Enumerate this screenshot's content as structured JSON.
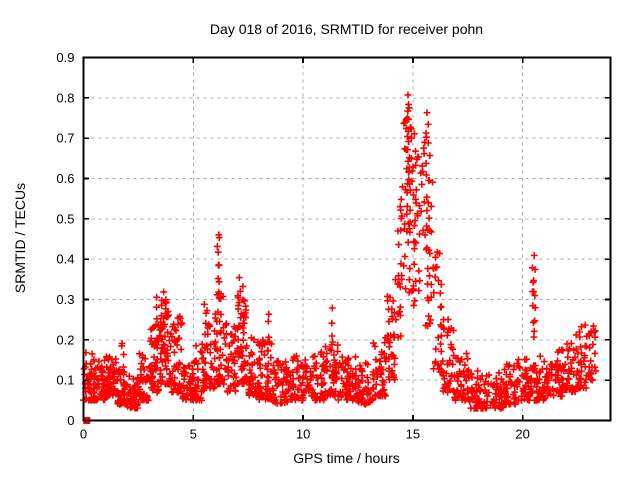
{
  "chart_data": {
    "type": "scatter",
    "title": "Day 018 of 2016, SRMTID for receiver pohn",
    "xlabel": "GPS time / hours",
    "ylabel": "SRMTID / TECUs",
    "xlim": [
      0,
      24
    ],
    "ylim": [
      0,
      0.9
    ],
    "xticks": [
      {
        "value": 0,
        "label": "0"
      },
      {
        "value": 5,
        "label": "5"
      },
      {
        "value": 10,
        "label": "10"
      },
      {
        "value": 15,
        "label": "15"
      },
      {
        "value": 20,
        "label": "20"
      }
    ],
    "yticks": [
      {
        "value": 0.0,
        "label": "0"
      },
      {
        "value": 0.1,
        "label": "0.1"
      },
      {
        "value": 0.2,
        "label": "0.2"
      },
      {
        "value": 0.3,
        "label": "0.3"
      },
      {
        "value": 0.4,
        "label": "0.4"
      },
      {
        "value": 0.5,
        "label": "0.5"
      },
      {
        "value": 0.6,
        "label": "0.6"
      },
      {
        "value": 0.7,
        "label": "0.7"
      },
      {
        "value": 0.8,
        "label": "0.8"
      },
      {
        "value": 0.9,
        "label": "0.9"
      }
    ],
    "grid": true,
    "legend": "none",
    "marker": "plus",
    "marker_color": "#ff0000",
    "grid_color": "#a8a8a8",
    "frame_color": "#000000",
    "text_color": "#000000",
    "background_color": "#ffffff",
    "series_name": "SRMTID",
    "max_point": {
      "t": 14.8,
      "value": 0.81
    },
    "zero_marker": {
      "t": 0.15,
      "value": 0.0,
      "style": "filled-square"
    },
    "envelope_bins": [
      [
        0.0,
        0.5,
        0.05,
        0.17,
        45
      ],
      [
        0.5,
        1.0,
        0.05,
        0.15,
        45
      ],
      [
        1.0,
        1.5,
        0.06,
        0.16,
        45
      ],
      [
        1.5,
        2.0,
        0.04,
        0.13,
        42
      ],
      [
        2.0,
        2.5,
        0.03,
        0.11,
        42
      ],
      [
        2.5,
        3.0,
        0.05,
        0.17,
        42
      ],
      [
        3.0,
        3.5,
        0.07,
        0.24,
        45
      ],
      [
        3.5,
        4.0,
        0.09,
        0.3,
        48
      ],
      [
        4.0,
        4.5,
        0.07,
        0.26,
        42
      ],
      [
        4.5,
        5.0,
        0.05,
        0.16,
        40
      ],
      [
        5.0,
        5.5,
        0.05,
        0.19,
        40
      ],
      [
        5.5,
        6.0,
        0.08,
        0.3,
        45
      ],
      [
        6.0,
        6.5,
        0.09,
        0.33,
        40
      ],
      [
        6.5,
        7.0,
        0.07,
        0.24,
        40
      ],
      [
        7.0,
        7.5,
        0.09,
        0.31,
        42
      ],
      [
        7.5,
        8.0,
        0.06,
        0.22,
        40
      ],
      [
        8.0,
        8.6,
        0.05,
        0.2,
        48
      ],
      [
        8.6,
        9.4,
        0.04,
        0.15,
        55
      ],
      [
        9.4,
        10.2,
        0.05,
        0.16,
        55
      ],
      [
        10.2,
        11.0,
        0.05,
        0.17,
        55
      ],
      [
        11.0,
        11.6,
        0.06,
        0.2,
        42
      ],
      [
        11.6,
        12.4,
        0.05,
        0.16,
        55
      ],
      [
        12.4,
        13.2,
        0.04,
        0.15,
        55
      ],
      [
        13.2,
        13.8,
        0.06,
        0.21,
        40
      ],
      [
        13.8,
        14.2,
        0.1,
        0.32,
        30
      ],
      [
        14.2,
        14.5,
        0.18,
        0.55,
        22
      ],
      [
        14.5,
        15.0,
        0.3,
        0.78,
        30
      ],
      [
        15.0,
        15.4,
        0.25,
        0.66,
        24
      ],
      [
        15.4,
        15.9,
        0.22,
        0.72,
        26
      ],
      [
        15.9,
        16.3,
        0.12,
        0.42,
        28
      ],
      [
        16.3,
        16.9,
        0.07,
        0.27,
        40
      ],
      [
        16.9,
        17.5,
        0.05,
        0.17,
        45
      ],
      [
        17.5,
        18.3,
        0.03,
        0.13,
        55
      ],
      [
        18.3,
        19.1,
        0.03,
        0.12,
        55
      ],
      [
        19.1,
        19.7,
        0.04,
        0.14,
        45
      ],
      [
        19.7,
        20.4,
        0.05,
        0.16,
        48
      ],
      [
        20.4,
        21.1,
        0.05,
        0.16,
        45
      ],
      [
        21.1,
        21.8,
        0.06,
        0.18,
        45
      ],
      [
        21.8,
        22.4,
        0.07,
        0.2,
        42
      ],
      [
        22.4,
        23.0,
        0.08,
        0.24,
        42
      ],
      [
        23.0,
        23.35,
        0.1,
        0.26,
        22
      ]
    ],
    "spike_columns": [
      [
        1.78,
        0.12,
        0.2,
        5
      ],
      [
        3.35,
        0.15,
        0.3,
        8
      ],
      [
        3.6,
        0.18,
        0.315,
        8
      ],
      [
        3.75,
        0.12,
        0.3,
        7
      ],
      [
        6.15,
        0.32,
        0.465,
        9
      ],
      [
        6.22,
        0.1,
        0.3,
        8
      ],
      [
        7.1,
        0.15,
        0.35,
        9
      ],
      [
        7.25,
        0.12,
        0.33,
        7
      ],
      [
        8.4,
        0.1,
        0.27,
        6
      ],
      [
        11.35,
        0.1,
        0.27,
        7
      ],
      [
        13.9,
        0.12,
        0.3,
        7
      ],
      [
        14.75,
        0.45,
        0.81,
        14
      ],
      [
        14.85,
        0.5,
        0.78,
        10
      ],
      [
        15.1,
        0.35,
        0.72,
        9
      ],
      [
        15.65,
        0.3,
        0.77,
        12
      ],
      [
        15.75,
        0.25,
        0.65,
        8
      ],
      [
        20.5,
        0.2,
        0.4,
        9
      ],
      [
        20.55,
        0.24,
        0.38,
        5
      ]
    ],
    "seed": 20161801
  }
}
